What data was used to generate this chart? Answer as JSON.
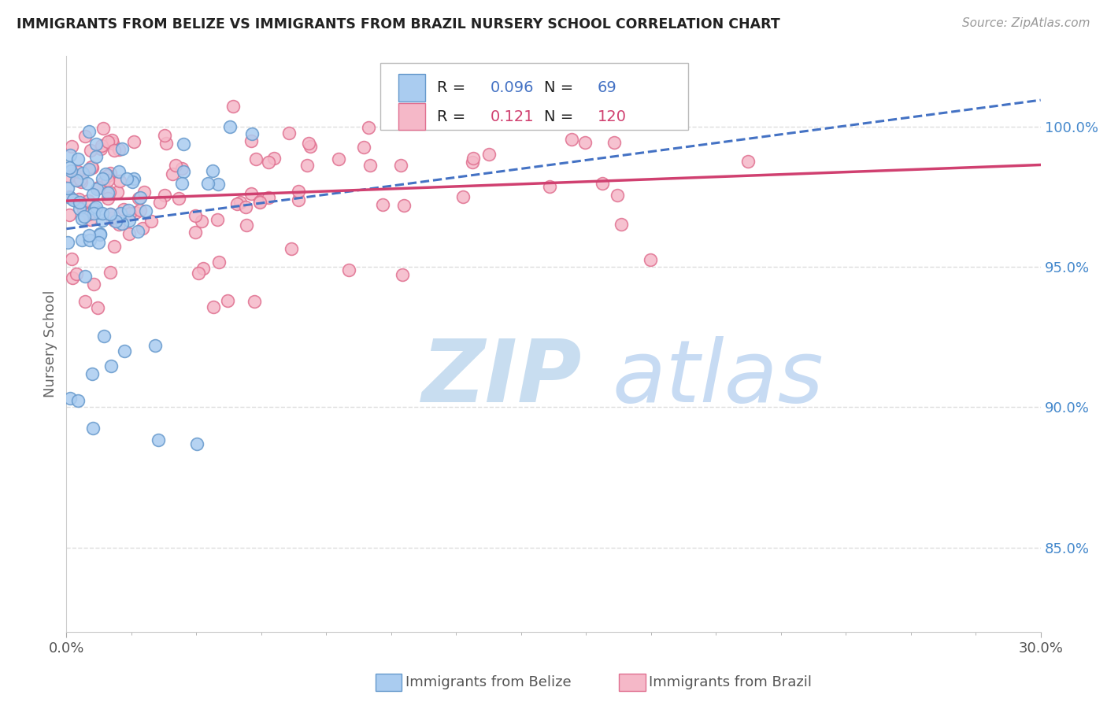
{
  "title": "IMMIGRANTS FROM BELIZE VS IMMIGRANTS FROM BRAZIL NURSERY SCHOOL CORRELATION CHART",
  "source": "Source: ZipAtlas.com",
  "ylabel": "Nursery School",
  "xlim": [
    0.0,
    30.0
  ],
  "ylim": [
    82.0,
    102.5
  ],
  "yticks": [
    85.0,
    90.0,
    95.0,
    100.0
  ],
  "ytick_labels": [
    "85.0%",
    "90.0%",
    "95.0%",
    "100.0%"
  ],
  "belize_R": 0.096,
  "belize_N": 69,
  "brazil_R": 0.121,
  "brazil_N": 120,
  "belize_color": "#aaccf0",
  "belize_edge_color": "#6699cc",
  "brazil_color": "#f5b8c8",
  "brazil_edge_color": "#e07090",
  "belize_line_color": "#4472c4",
  "brazil_line_color": "#d04070",
  "grid_color": "#dddddd",
  "watermark_zip_color": "#c8ddf0",
  "watermark_atlas_color": "#b0ccee"
}
